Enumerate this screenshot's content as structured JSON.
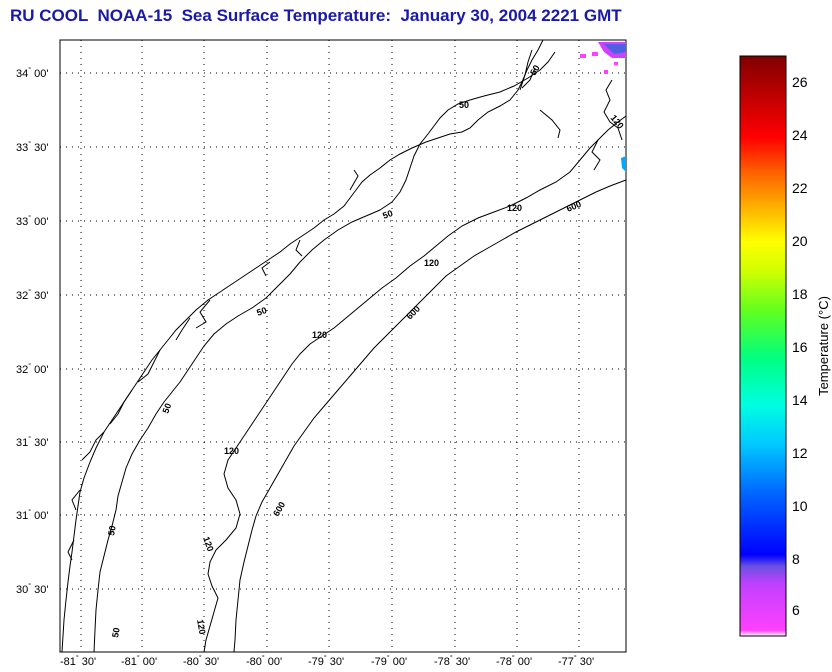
{
  "title": "RU COOL  NOAA-15  Sea Surface Temperature:  January 30, 2004 2221 GMT",
  "map": {
    "lat_ticks": [
      {
        "deg": "34",
        "min": "00'"
      },
      {
        "deg": "33",
        "min": "30'"
      },
      {
        "deg": "33",
        "min": "00'"
      },
      {
        "deg": "32",
        "min": "30'"
      },
      {
        "deg": "32",
        "min": "00'"
      },
      {
        "deg": "31",
        "min": "30'"
      },
      {
        "deg": "31",
        "min": "00'"
      },
      {
        "deg": "30",
        "min": "30'"
      }
    ],
    "lon_ticks": [
      {
        "deg": "-81",
        "min": "30'"
      },
      {
        "deg": "-81",
        "min": "00'"
      },
      {
        "deg": "-80",
        "min": "30'"
      },
      {
        "deg": "-80",
        "min": "00'"
      },
      {
        "deg": "-79",
        "min": "30'"
      },
      {
        "deg": "-79",
        "min": "00'"
      },
      {
        "deg": "-78",
        "min": "30'"
      },
      {
        "deg": "-78",
        "min": "00'"
      },
      {
        "deg": "-77",
        "min": "30'"
      }
    ],
    "contour_labels": [
      "50",
      "50",
      "50",
      "50",
      "50",
      "120",
      "120",
      "120",
      "120",
      "120",
      "120",
      "120",
      "600",
      "600",
      "600",
      "50",
      "50"
    ]
  },
  "colorbar": {
    "label": "Temperature (°C)",
    "ticks": [
      "26",
      "24",
      "22",
      "20",
      "18",
      "16",
      "14",
      "12",
      "10",
      "8",
      "6"
    ],
    "colors": {
      "min": "#ff40ff",
      "low": "#0000ff",
      "mid": "#00ff80",
      "high": "#ff0000",
      "max": "#800000"
    }
  }
}
